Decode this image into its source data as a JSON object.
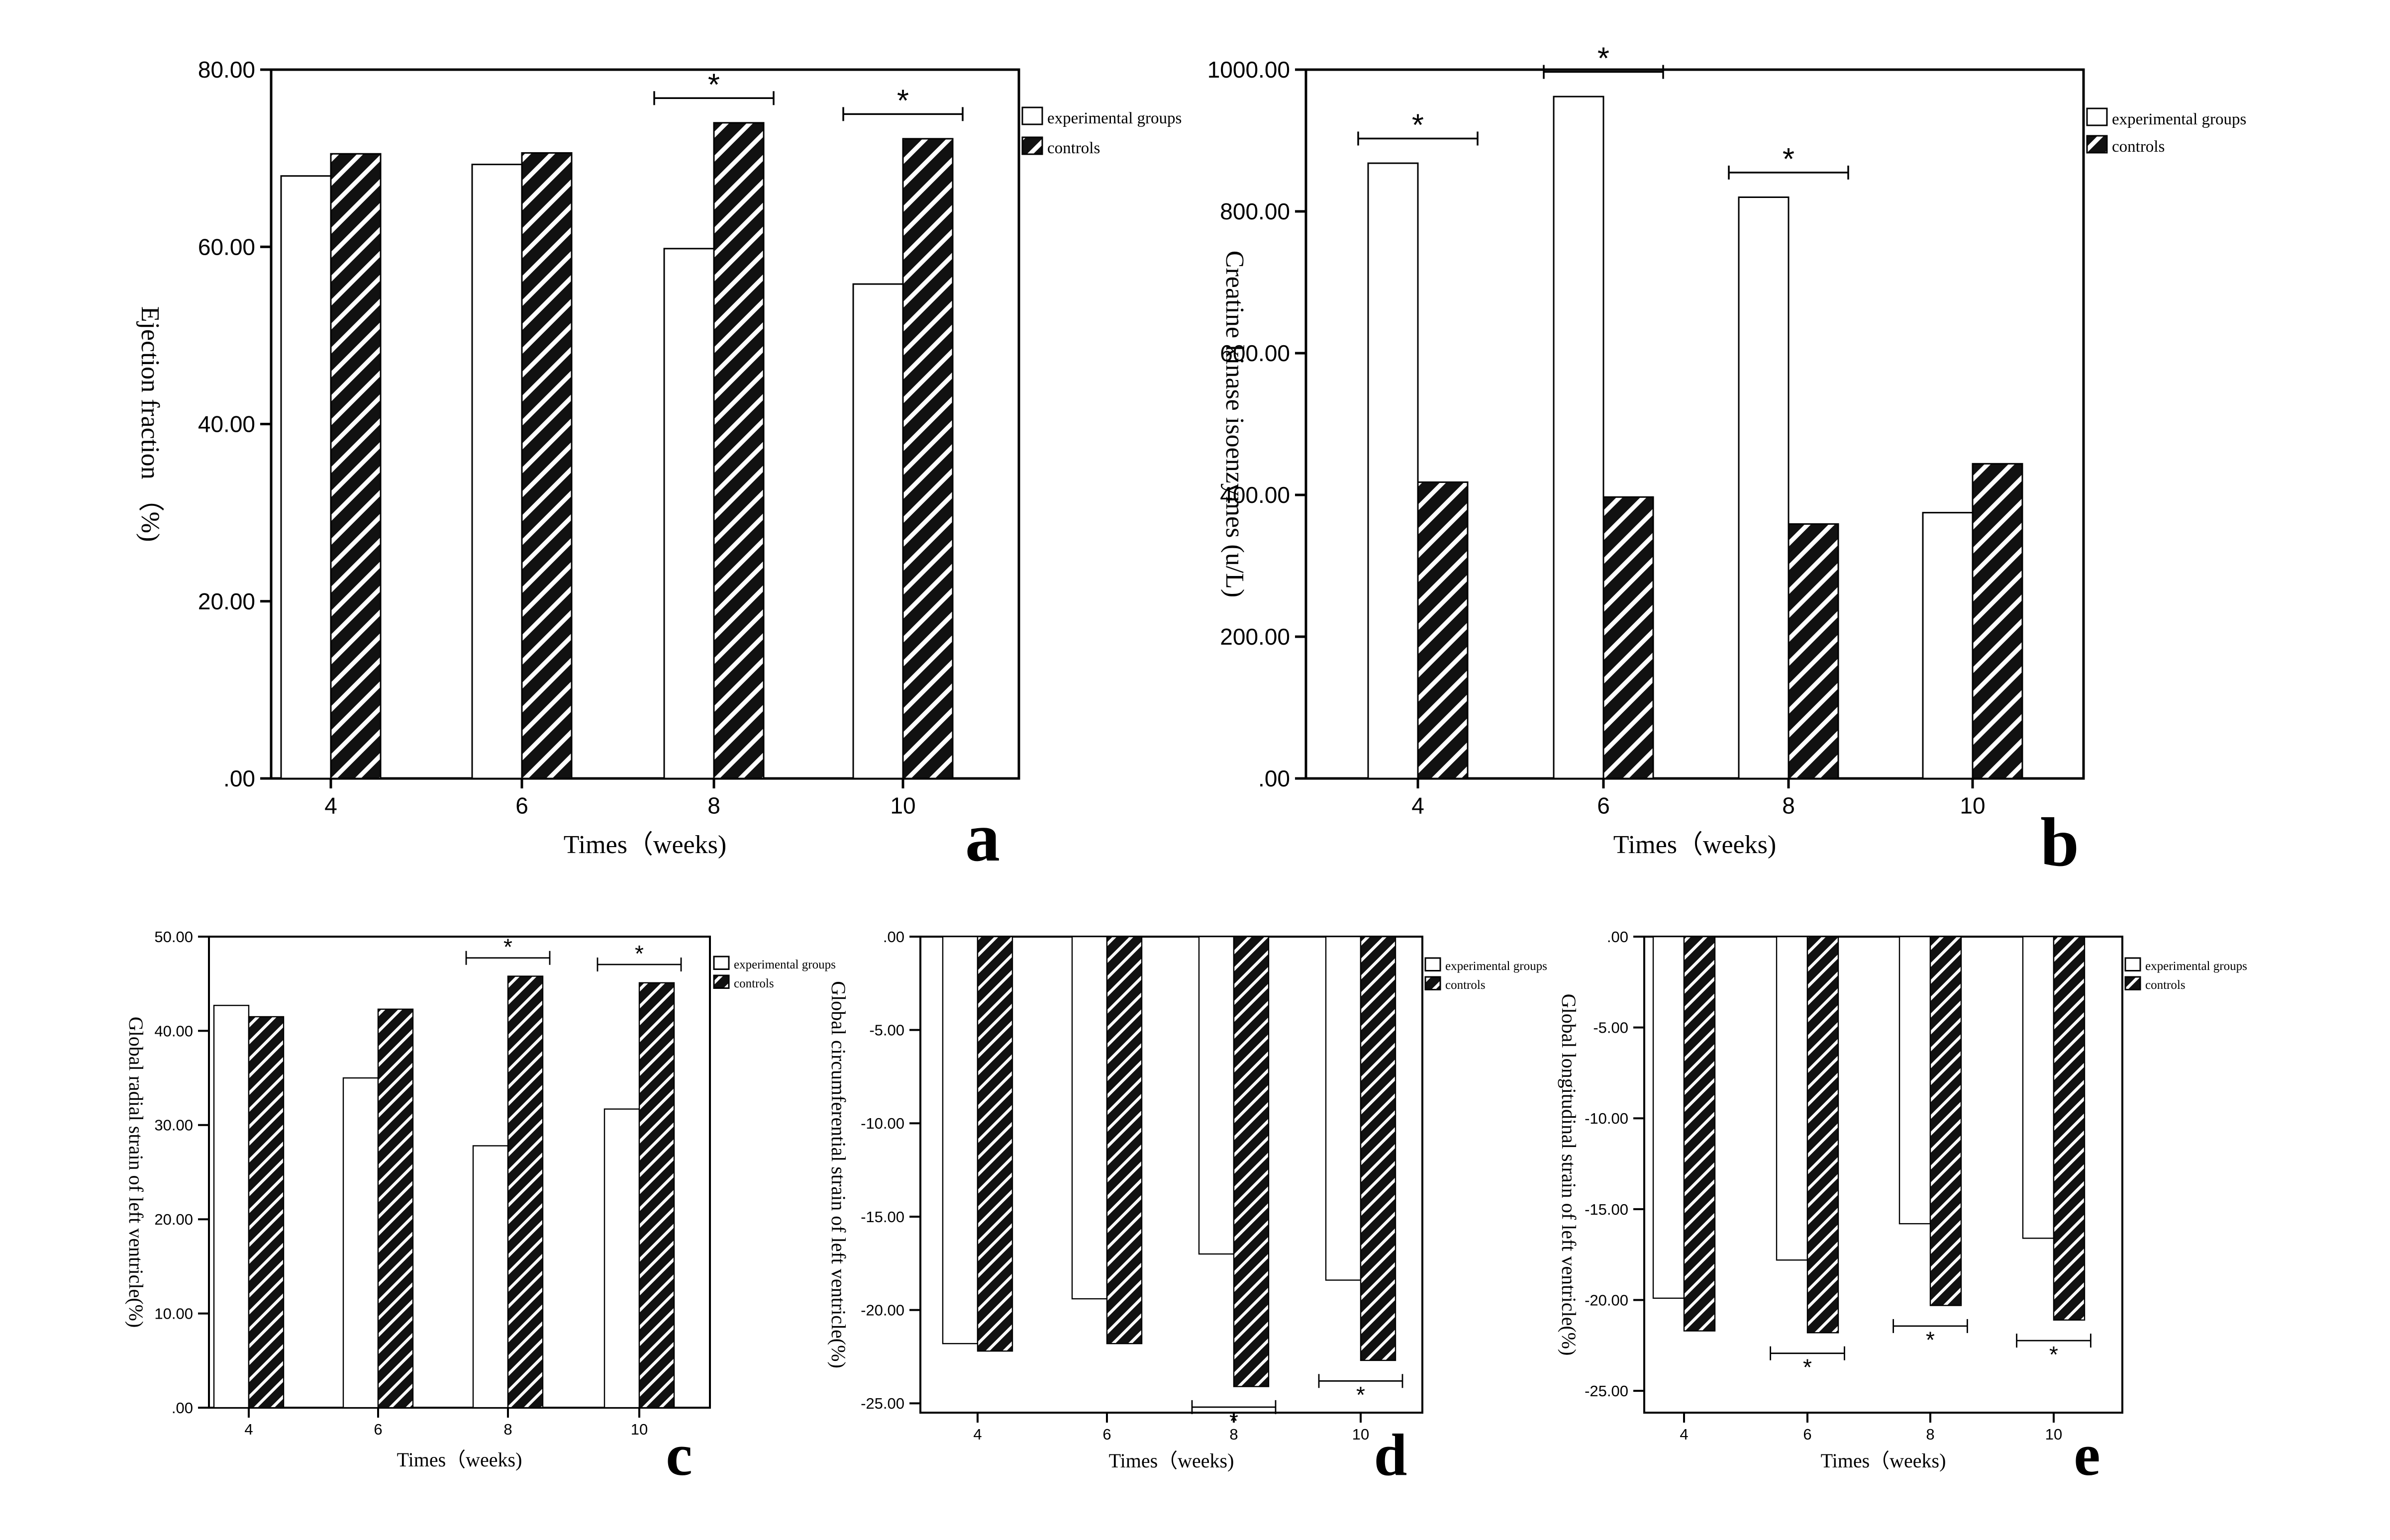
{
  "figure": {
    "legend": {
      "experimental": "experimental groups",
      "controls": "controls"
    },
    "colors": {
      "experimental_fill": "#ffffff",
      "controls_fill": "#111111",
      "hatch_stroke": "#ffffff",
      "axis": "#000000"
    }
  },
  "chart_data": [
    {
      "panel": "a",
      "type": "bar",
      "xlabel": "Times（weeks)",
      "ylabel": "Ejection fraction （%)",
      "categories": [
        "4",
        "6",
        "8",
        "10"
      ],
      "ylim": [
        0,
        80
      ],
      "yticks": [
        0,
        20,
        40,
        60,
        80
      ],
      "ytick_labels": [
        ".00",
        "20.00",
        "40.00",
        "60.00",
        "80.00"
      ],
      "series": [
        {
          "name": "experimental groups",
          "values": [
            68,
            69.3,
            59.8,
            55.8
          ]
        },
        {
          "name": "controls",
          "values": [
            70.5,
            70.6,
            74,
            72.2
          ]
        }
      ],
      "significance": [
        {
          "category": "8",
          "label": "*"
        },
        {
          "category": "10",
          "label": "*"
        }
      ]
    },
    {
      "panel": "b",
      "type": "bar",
      "xlabel": "Times（weeks)",
      "ylabel": "Creatine kinase isoenzymes (u/L)",
      "categories": [
        "4",
        "6",
        "8",
        "10"
      ],
      "ylim": [
        0,
        1000
      ],
      "yticks": [
        0,
        200,
        400,
        600,
        800,
        1000
      ],
      "ytick_labels": [
        ".00",
        "200.00",
        "400.00",
        "600.00",
        "800.00",
        "1000.00"
      ],
      "series": [
        {
          "name": "experimental groups",
          "values": [
            868,
            962,
            820,
            375
          ]
        },
        {
          "name": "controls",
          "values": [
            418,
            397,
            359,
            444
          ]
        }
      ],
      "significance": [
        {
          "category": "4",
          "label": "*"
        },
        {
          "category": "6",
          "label": "*"
        },
        {
          "category": "8",
          "label": "*"
        }
      ]
    },
    {
      "panel": "c",
      "type": "bar",
      "xlabel": "Times（weeks)",
      "ylabel": "Global radial strain of left ventricle(%)",
      "categories": [
        "4",
        "6",
        "8",
        "10"
      ],
      "ylim": [
        0,
        50
      ],
      "yticks": [
        0,
        10,
        20,
        30,
        40,
        50
      ],
      "ytick_labels": [
        ".00",
        "10.00",
        "20.00",
        "30.00",
        "40.00",
        "50.00"
      ],
      "series": [
        {
          "name": "experimental groups",
          "values": [
            42.7,
            35,
            27.8,
            31.7
          ]
        },
        {
          "name": "controls",
          "values": [
            41.5,
            42.3,
            45.8,
            45.1
          ]
        }
      ],
      "significance": [
        {
          "category": "8",
          "label": "*"
        },
        {
          "category": "10",
          "label": "*"
        }
      ]
    },
    {
      "panel": "d",
      "type": "bar",
      "xlabel": "Times（weeks)",
      "ylabel": "Global circumferential strain of left ventricle(%)",
      "categories": [
        "4",
        "6",
        "8",
        "10"
      ],
      "ylim": [
        -25.5,
        0
      ],
      "yticks": [
        0,
        -5,
        -10,
        -15,
        -20,
        -25
      ],
      "ytick_labels": [
        ".00",
        "-5.00",
        "-10.00",
        "-15.00",
        "-20.00",
        "-25.00"
      ],
      "series": [
        {
          "name": "experimental groups",
          "values": [
            -21.8,
            -19.4,
            -17,
            -18.4
          ]
        },
        {
          "name": "controls",
          "values": [
            -22.2,
            -21.8,
            -24.1,
            -22.7
          ]
        }
      ],
      "significance": [
        {
          "category": "8",
          "label": "*"
        },
        {
          "category": "10",
          "label": "*"
        }
      ]
    },
    {
      "panel": "e",
      "type": "bar",
      "xlabel": "Times（weeks)",
      "ylabel": "Global longitudinal strain of left ventricle(%)",
      "categories": [
        "4",
        "6",
        "8",
        "10"
      ],
      "ylim": [
        -26.2,
        0
      ],
      "yticks": [
        0,
        -5,
        -10,
        -15,
        -20,
        -25
      ],
      "ytick_labels": [
        ".00",
        "-5.00",
        "-10.00",
        "-15.00",
        "-20.00",
        "-25.00"
      ],
      "series": [
        {
          "name": "experimental groups",
          "values": [
            -19.9,
            -17.8,
            -15.8,
            -16.6
          ]
        },
        {
          "name": "controls",
          "values": [
            -21.7,
            -21.8,
            -20.3,
            -21.1
          ]
        }
      ],
      "significance": [
        {
          "category": "6",
          "label": "*"
        },
        {
          "category": "8",
          "label": "*"
        },
        {
          "category": "10",
          "label": "*"
        }
      ]
    }
  ]
}
